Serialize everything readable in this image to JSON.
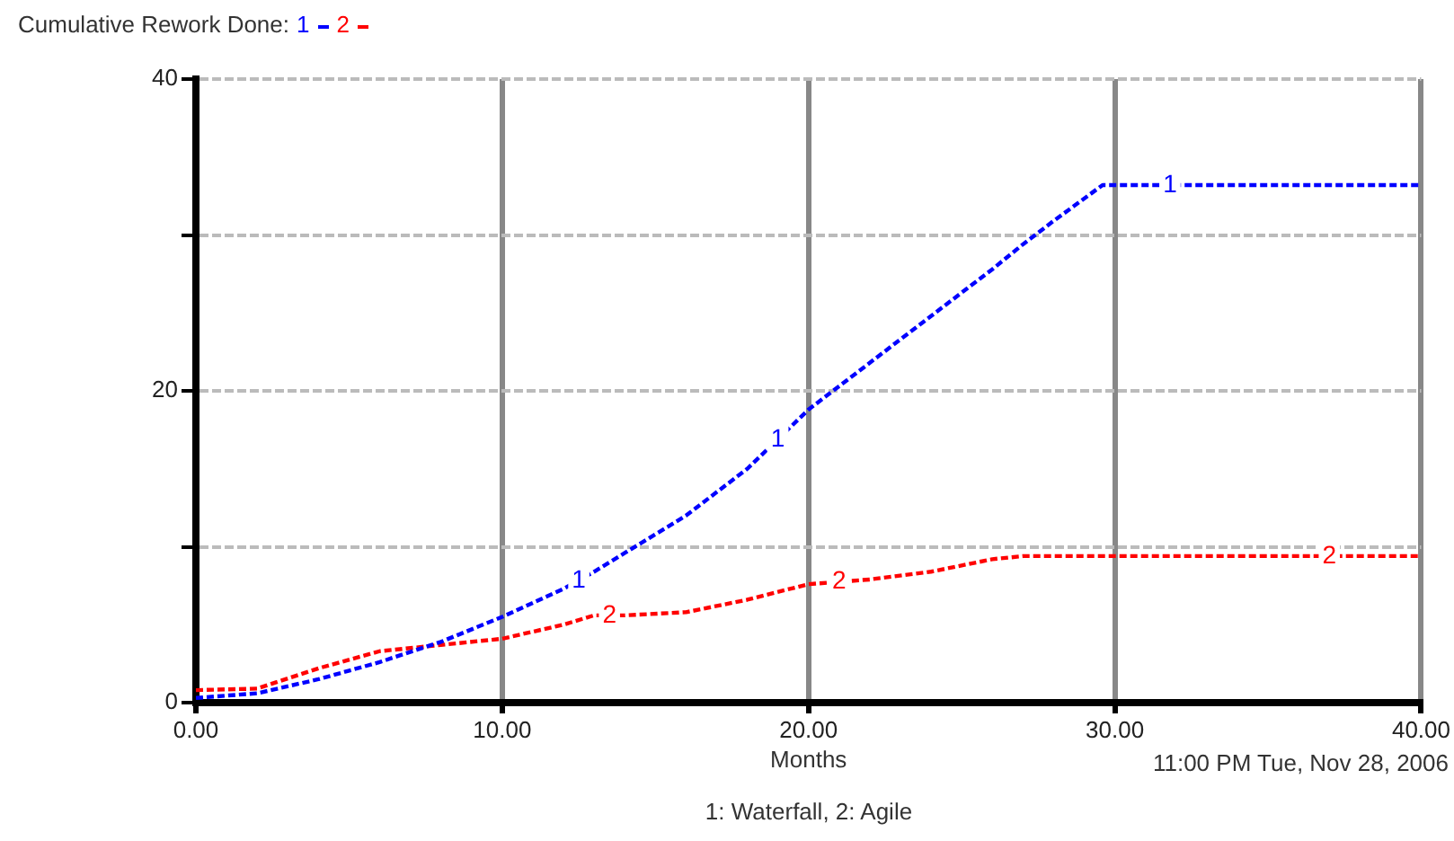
{
  "chart_data": {
    "type": "line",
    "title": "Cumulative Rework Done:",
    "xlabel": "Months",
    "x": [
      0,
      2,
      4,
      6,
      8,
      10,
      12,
      13,
      14,
      16,
      18,
      20,
      22,
      24,
      26,
      27,
      28,
      29.6,
      34,
      40
    ],
    "series": [
      {
        "name": "1",
        "color": "#0000ff",
        "values": [
          0.3,
          0.6,
          1.5,
          2.6,
          3.9,
          5.5,
          7.3,
          8.4,
          9.6,
          12,
          15,
          18.8,
          21.8,
          24.8,
          27.8,
          29.4,
          30.9,
          33.2,
          33.2,
          33.2
        ]
      },
      {
        "name": "2",
        "color": "#ff0000",
        "values": [
          0.8,
          0.9,
          2.2,
          3.3,
          3.7,
          4.1,
          5,
          5.6,
          5.6,
          5.8,
          6.6,
          7.6,
          7.9,
          8.4,
          9.2,
          9.4,
          9.4,
          9.4,
          9.4,
          9.4
        ]
      }
    ],
    "xlim": [
      0,
      40
    ],
    "xticks": [
      {
        "value": 0,
        "label": "0.00"
      },
      {
        "value": 10,
        "label": "10.00"
      },
      {
        "value": 20,
        "label": "20.00"
      },
      {
        "value": 30,
        "label": "30.00"
      },
      {
        "value": 40,
        "label": "40.00"
      }
    ],
    "ylim": [
      0,
      40
    ],
    "yticks": [
      0,
      {
        "value": 10,
        "label": null
      },
      20,
      {
        "value": 30,
        "label": null
      },
      40
    ],
    "grid": true,
    "legend": "top left",
    "marker": "none",
    "line_style": "dashed",
    "annotations": [
      "11:00 PM   Tue, Nov 28, 2006",
      "1: Waterfall, 2: Agile"
    ]
  }
}
